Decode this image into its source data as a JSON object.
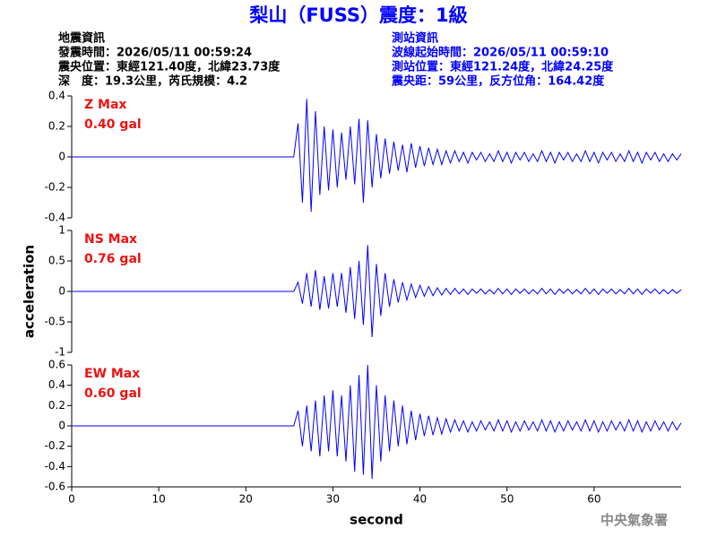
{
  "header": {
    "title": "梨山（FUSS）震度：1級",
    "left": [
      "地震資訊",
      "發震時間：2026/05/11 00:59:24",
      "震央位置：東經121.40度，北緯23.73度",
      "深　度：19.3公里，芮氏規模：4.2"
    ],
    "right": [
      "測站資訊",
      "波線起始時間：2026/05/11 00:59:10",
      "測站位置：東經121.24度，北緯24.25度",
      "震央距：59公里，反方位角：164.42度"
    ]
  },
  "footer": "中央氣象署",
  "chart_data": [
    {
      "type": "line",
      "annotation": "Z Max",
      "annotation_value": "0.40 gal",
      "color": "#0000ff",
      "xlim": [
        0,
        70
      ],
      "ylim": [
        -0.4,
        0.4
      ],
      "yticks": [
        0.4,
        0.2,
        0,
        -0.2,
        -0.4
      ],
      "x": [
        0,
        0.5,
        1,
        1.5,
        2,
        2.5,
        3,
        3.5,
        4,
        4.5,
        5,
        5.5,
        6,
        6.5,
        7,
        7.5,
        8,
        8.5,
        9,
        9.5,
        10,
        10.5,
        11,
        11.5,
        12,
        12.5,
        13,
        13.5,
        14,
        14.5,
        15,
        15.5,
        16,
        16.5,
        17,
        17.5,
        18,
        18.5,
        19,
        19.5,
        20,
        20.5,
        21,
        21.5,
        22,
        22.5,
        23,
        23.5,
        24,
        24.5,
        25,
        25.5,
        26,
        26.5,
        27,
        27.5,
        28,
        28.5,
        29,
        29.5,
        30,
        30.5,
        31,
        31.5,
        32,
        32.5,
        33,
        33.5,
        34,
        34.5,
        35,
        35.5,
        36,
        36.5,
        37,
        37.5,
        38,
        38.5,
        39,
        39.5,
        40,
        40.5,
        41,
        41.5,
        42,
        42.5,
        43,
        43.5,
        44,
        44.5,
        45,
        45.5,
        46,
        46.5,
        47,
        47.5,
        48,
        48.5,
        49,
        49.5,
        50,
        50.5,
        51,
        51.5,
        52,
        52.5,
        53,
        53.5,
        54,
        54.5,
        55,
        55.5,
        56,
        56.5,
        57,
        57.5,
        58,
        58.5,
        59,
        59.5,
        60,
        60.5,
        61,
        61.5,
        62,
        62.5,
        63,
        63.5,
        64,
        64.5,
        65,
        65.5,
        66,
        66.5,
        67,
        67.5,
        68,
        68.5,
        69,
        69.5,
        70
      ],
      "values": [
        0,
        0,
        0,
        0,
        0,
        0,
        0,
        0,
        0,
        0,
        0,
        0,
        0,
        0,
        0,
        0,
        0,
        0,
        0,
        0,
        0,
        0,
        0,
        0,
        0,
        0,
        0,
        0,
        0,
        0,
        0,
        0,
        0,
        0,
        0,
        0,
        0,
        0,
        0,
        0,
        0,
        0,
        0,
        0,
        0,
        0,
        0,
        0,
        0,
        0,
        0,
        0,
        0.22,
        -0.3,
        0.38,
        -0.36,
        0.3,
        -0.25,
        0.2,
        -0.22,
        0.18,
        -0.2,
        0.16,
        -0.15,
        0.2,
        -0.18,
        0.25,
        -0.3,
        0.24,
        -0.2,
        0.15,
        -0.14,
        0.12,
        -0.11,
        0.1,
        -0.09,
        0.08,
        -0.1,
        0.09,
        -0.07,
        0.07,
        -0.06,
        0.06,
        -0.05,
        0.05,
        -0.05,
        0.04,
        -0.04,
        0.04,
        -0.03,
        0.03,
        -0.04,
        0.03,
        -0.02,
        0.03,
        -0.03,
        0.02,
        -0.03,
        0.04,
        -0.03,
        0.03,
        -0.04,
        0.03,
        -0.02,
        0.03,
        -0.03,
        0.02,
        -0.03,
        0.04,
        -0.03,
        0.03,
        -0.04,
        0.03,
        -0.02,
        0.03,
        -0.03,
        0.02,
        -0.03,
        0.04,
        -0.03,
        0.03,
        -0.04,
        0.03,
        -0.02,
        0.03,
        -0.03,
        0.02,
        -0.03,
        0.04,
        -0.03,
        0.03,
        -0.04,
        0.03,
        -0.02,
        0.03,
        -0.03,
        0.02,
        -0.03,
        0.02,
        -0.02,
        0.02
      ]
    },
    {
      "type": "line",
      "annotation": "NS Max",
      "annotation_value": "0.76 gal",
      "color": "#0000ff",
      "y_label": "acceleration",
      "xlim": [
        0,
        70
      ],
      "ylim": [
        -1,
        1
      ],
      "yticks": [
        1,
        0.5,
        0,
        -0.5,
        -1
      ],
      "x": [
        0,
        0.5,
        1,
        1.5,
        2,
        2.5,
        3,
        3.5,
        4,
        4.5,
        5,
        5.5,
        6,
        6.5,
        7,
        7.5,
        8,
        8.5,
        9,
        9.5,
        10,
        10.5,
        11,
        11.5,
        12,
        12.5,
        13,
        13.5,
        14,
        14.5,
        15,
        15.5,
        16,
        16.5,
        17,
        17.5,
        18,
        18.5,
        19,
        19.5,
        20,
        20.5,
        21,
        21.5,
        22,
        22.5,
        23,
        23.5,
        24,
        24.5,
        25,
        25.5,
        26,
        26.5,
        27,
        27.5,
        28,
        28.5,
        29,
        29.5,
        30,
        30.5,
        31,
        31.5,
        32,
        32.5,
        33,
        33.5,
        34,
        34.5,
        35,
        35.5,
        36,
        36.5,
        37,
        37.5,
        38,
        38.5,
        39,
        39.5,
        40,
        40.5,
        41,
        41.5,
        42,
        42.5,
        43,
        43.5,
        44,
        44.5,
        45,
        45.5,
        46,
        46.5,
        47,
        47.5,
        48,
        48.5,
        49,
        49.5,
        50,
        50.5,
        51,
        51.5,
        52,
        52.5,
        53,
        53.5,
        54,
        54.5,
        55,
        55.5,
        56,
        56.5,
        57,
        57.5,
        58,
        58.5,
        59,
        59.5,
        60,
        60.5,
        61,
        61.5,
        62,
        62.5,
        63,
        63.5,
        64,
        64.5,
        65,
        65.5,
        66,
        66.5,
        67,
        67.5,
        68,
        68.5,
        69,
        69.5,
        70
      ],
      "values": [
        0,
        0,
        0,
        0,
        0,
        0,
        0,
        0,
        0,
        0,
        0,
        0,
        0,
        0,
        0,
        0,
        0,
        0,
        0,
        0,
        0,
        0,
        0,
        0,
        0,
        0,
        0,
        0,
        0,
        0,
        0,
        0,
        0,
        0,
        0,
        0,
        0,
        0,
        0,
        0,
        0,
        0,
        0,
        0,
        0,
        0,
        0,
        0,
        0,
        0,
        0,
        0,
        0.15,
        -0.2,
        0.3,
        -0.25,
        0.35,
        -0.3,
        0.25,
        -0.28,
        0.3,
        -0.25,
        0.3,
        -0.35,
        0.4,
        -0.45,
        0.5,
        -0.55,
        0.76,
        -0.75,
        0.45,
        -0.4,
        0.3,
        -0.25,
        0.2,
        -0.18,
        0.15,
        -0.14,
        0.12,
        -0.1,
        0.1,
        -0.08,
        0.08,
        -0.07,
        0.06,
        -0.06,
        0.05,
        -0.05,
        0.05,
        -0.04,
        0.04,
        -0.05,
        0.04,
        -0.03,
        0.04,
        -0.04,
        0.03,
        -0.04,
        0.05,
        -0.04,
        0.04,
        -0.05,
        0.04,
        -0.03,
        0.04,
        -0.04,
        0.03,
        -0.04,
        0.05,
        -0.04,
        0.04,
        -0.05,
        0.04,
        -0.03,
        0.04,
        -0.04,
        0.03,
        -0.04,
        0.05,
        -0.04,
        0.04,
        -0.05,
        0.04,
        -0.03,
        0.04,
        -0.04,
        0.03,
        -0.04,
        0.05,
        -0.04,
        0.04,
        -0.05,
        0.04,
        -0.03,
        0.04,
        -0.04,
        0.03,
        -0.04,
        0.03,
        -0.03,
        0.03
      ]
    },
    {
      "type": "line",
      "annotation": "EW Max",
      "annotation_value": "0.60 gal",
      "color": "#0000ff",
      "x_label": "second",
      "xlim": [
        0,
        70
      ],
      "ylim": [
        -0.6,
        0.6
      ],
      "yticks": [
        0.6,
        0.4,
        0.2,
        0,
        -0.2,
        -0.4,
        -0.6
      ],
      "xticks": [
        0,
        10,
        20,
        30,
        40,
        50,
        60
      ],
      "x": [
        0,
        0.5,
        1,
        1.5,
        2,
        2.5,
        3,
        3.5,
        4,
        4.5,
        5,
        5.5,
        6,
        6.5,
        7,
        7.5,
        8,
        8.5,
        9,
        9.5,
        10,
        10.5,
        11,
        11.5,
        12,
        12.5,
        13,
        13.5,
        14,
        14.5,
        15,
        15.5,
        16,
        16.5,
        17,
        17.5,
        18,
        18.5,
        19,
        19.5,
        20,
        20.5,
        21,
        21.5,
        22,
        22.5,
        23,
        23.5,
        24,
        24.5,
        25,
        25.5,
        26,
        26.5,
        27,
        27.5,
        28,
        28.5,
        29,
        29.5,
        30,
        30.5,
        31,
        31.5,
        32,
        32.5,
        33,
        33.5,
        34,
        34.5,
        35,
        35.5,
        36,
        36.5,
        37,
        37.5,
        38,
        38.5,
        39,
        39.5,
        40,
        40.5,
        41,
        41.5,
        42,
        42.5,
        43,
        43.5,
        44,
        44.5,
        45,
        45.5,
        46,
        46.5,
        47,
        47.5,
        48,
        48.5,
        49,
        49.5,
        50,
        50.5,
        51,
        51.5,
        52,
        52.5,
        53,
        53.5,
        54,
        54.5,
        55,
        55.5,
        56,
        56.5,
        57,
        57.5,
        58,
        58.5,
        59,
        59.5,
        60,
        60.5,
        61,
        61.5,
        62,
        62.5,
        63,
        63.5,
        64,
        64.5,
        65,
        65.5,
        66,
        66.5,
        67,
        67.5,
        68,
        68.5,
        69,
        69.5,
        70
      ],
      "values": [
        0,
        0,
        0,
        0,
        0,
        0,
        0,
        0,
        0,
        0,
        0,
        0,
        0,
        0,
        0,
        0,
        0,
        0,
        0,
        0,
        0,
        0,
        0,
        0,
        0,
        0,
        0,
        0,
        0,
        0,
        0,
        0,
        0,
        0,
        0,
        0,
        0,
        0,
        0,
        0,
        0,
        0,
        0,
        0,
        0,
        0,
        0,
        0,
        0,
        0,
        0,
        0,
        0.15,
        -0.2,
        0.2,
        -0.25,
        0.25,
        -0.3,
        0.3,
        -0.25,
        0.35,
        -0.3,
        0.3,
        -0.35,
        0.4,
        -0.45,
        0.5,
        -0.48,
        0.6,
        -0.52,
        0.4,
        -0.35,
        0.3,
        -0.25,
        0.25,
        -0.2,
        0.2,
        -0.18,
        0.15,
        -0.14,
        0.12,
        -0.1,
        0.1,
        -0.09,
        0.08,
        -0.08,
        0.07,
        -0.06,
        0.06,
        -0.05,
        0.05,
        -0.06,
        0.04,
        -0.05,
        0.05,
        -0.04,
        0.04,
        -0.05,
        0.06,
        -0.05,
        0.05,
        -0.06,
        0.04,
        -0.05,
        0.05,
        -0.04,
        0.04,
        -0.05,
        0.06,
        -0.05,
        0.05,
        -0.06,
        0.04,
        -0.05,
        0.05,
        -0.04,
        0.04,
        -0.05,
        0.06,
        -0.05,
        0.05,
        -0.06,
        0.04,
        -0.05,
        0.05,
        -0.04,
        0.04,
        -0.05,
        0.06,
        -0.05,
        0.05,
        -0.06,
        0.04,
        -0.05,
        0.05,
        -0.04,
        0.04,
        -0.05,
        0.04,
        -0.04,
        0.03
      ]
    }
  ]
}
